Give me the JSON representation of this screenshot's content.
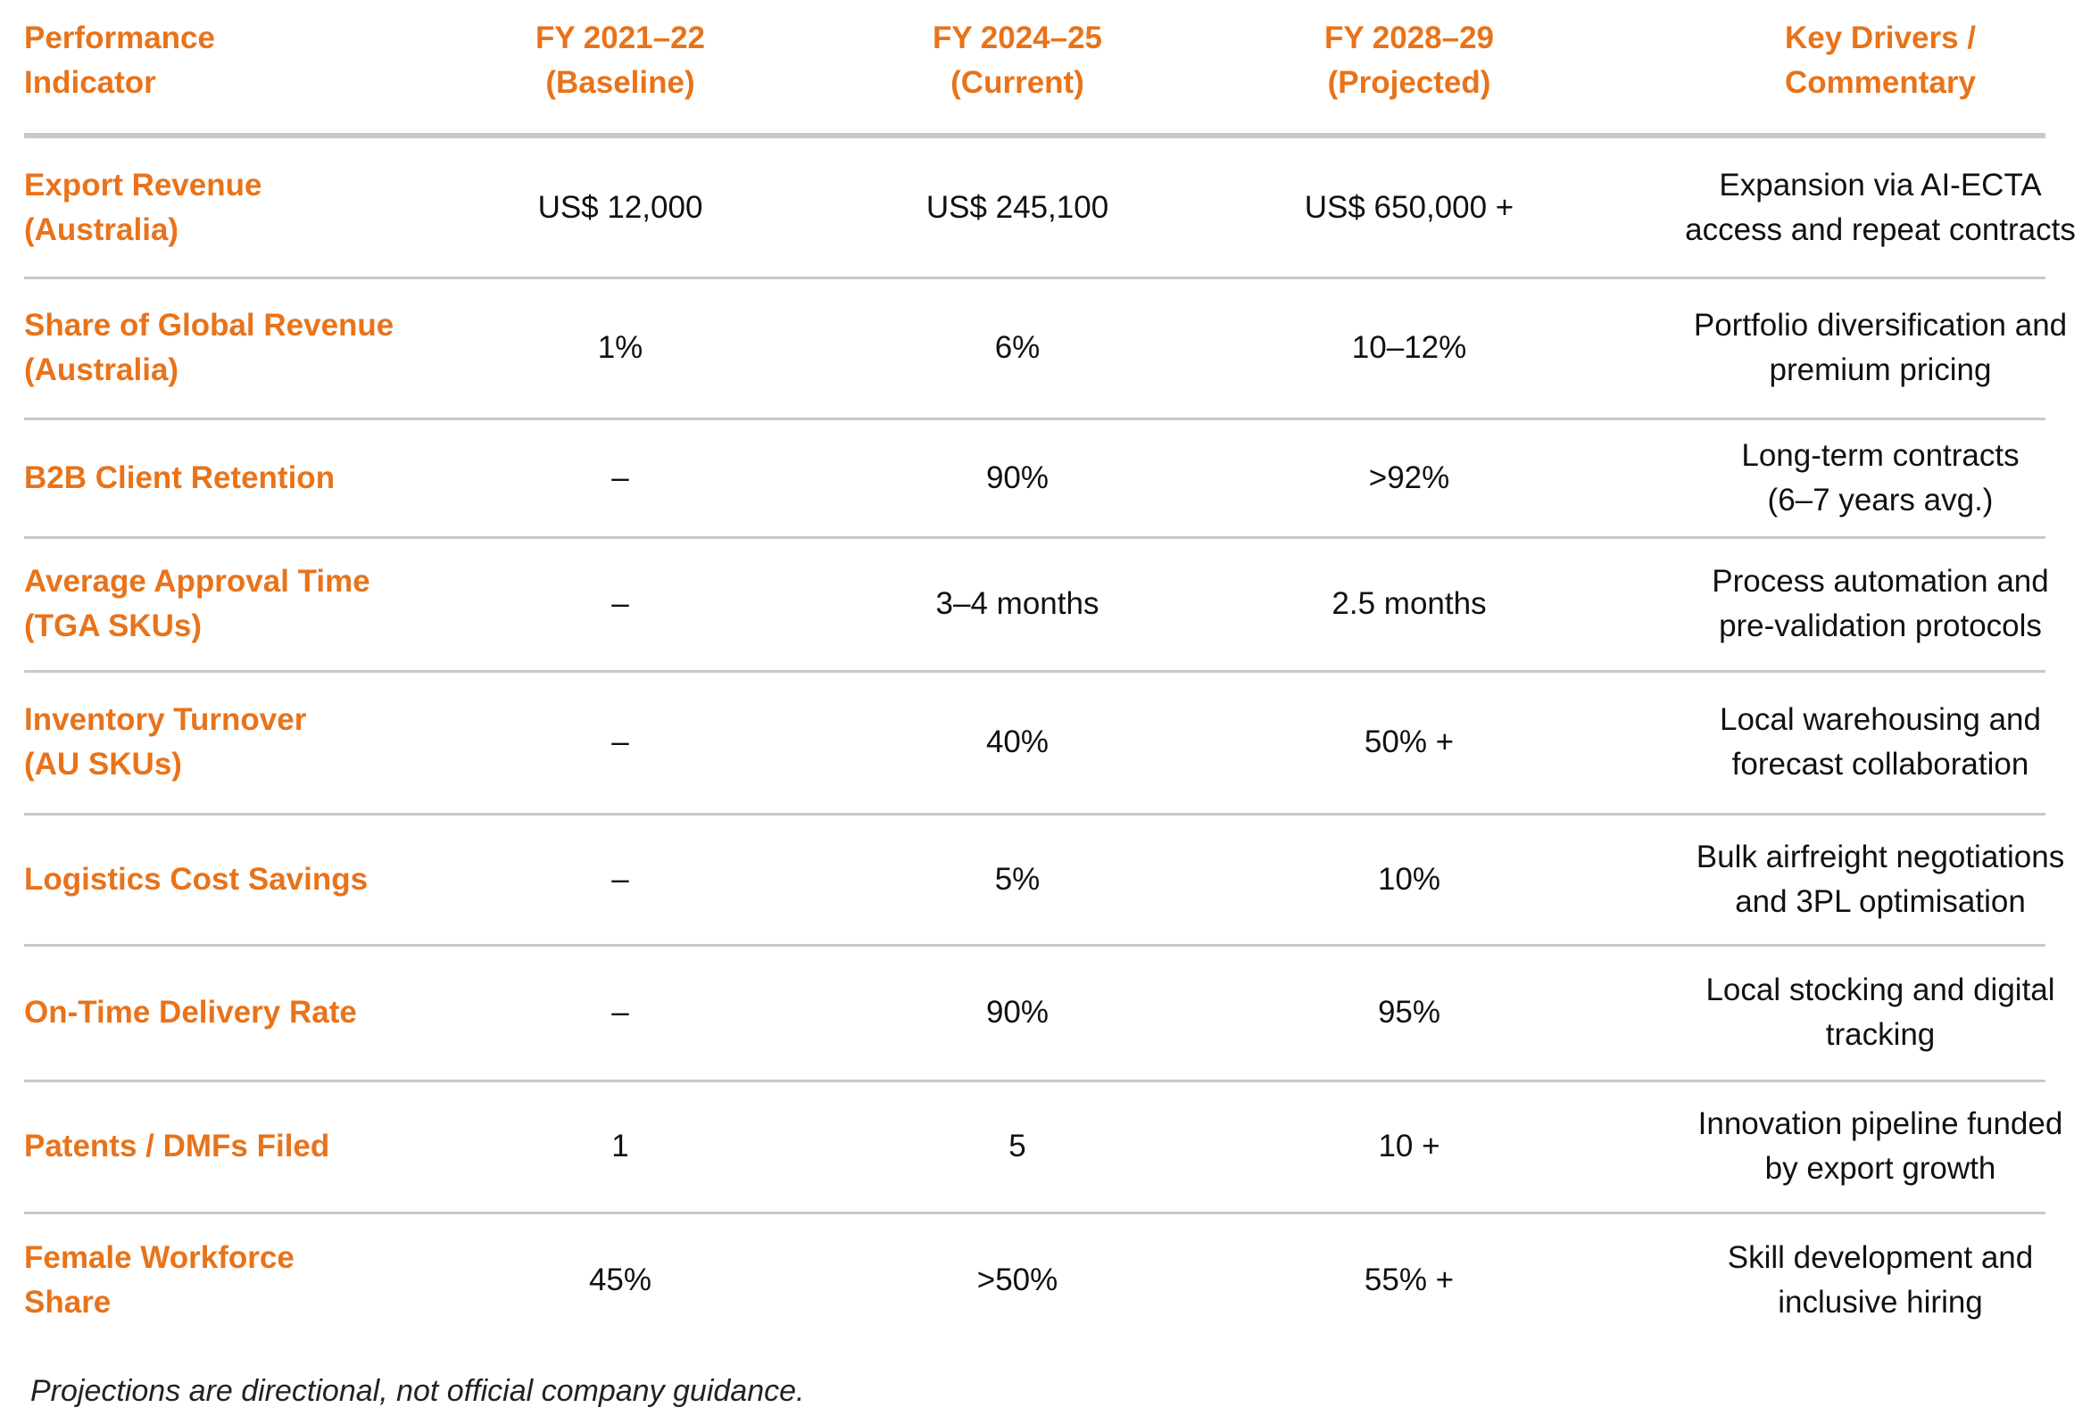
{
  "table": {
    "header": [
      [
        "Performance",
        "Indicator"
      ],
      [
        "FY 2021–22",
        "(Baseline)"
      ],
      [
        "FY 2024–25",
        "(Current)"
      ],
      [
        "FY 2028–29",
        "(Projected)"
      ],
      [
        "Key Drivers /",
        "Commentary"
      ]
    ],
    "rows": [
      [
        [
          "Export Revenue",
          "(Australia)"
        ],
        [
          "US$ 12,000"
        ],
        [
          "US$ 245,100"
        ],
        [
          "US$ 650,000 +"
        ],
        [
          "Expansion via AI-ECTA",
          "access and repeat contracts"
        ]
      ],
      [
        [
          "Share of Global Revenue",
          "(Australia)"
        ],
        [
          "1%"
        ],
        [
          "6%"
        ],
        [
          "10–12%"
        ],
        [
          "Portfolio diversification and",
          "premium pricing"
        ]
      ],
      [
        [
          "B2B Client Retention"
        ],
        [
          "–"
        ],
        [
          "90%"
        ],
        [
          ">92%"
        ],
        [
          "Long-term contracts",
          "(6–7 years avg.)"
        ]
      ],
      [
        [
          "Average Approval Time",
          "(TGA SKUs)"
        ],
        [
          "–"
        ],
        [
          "3–4 months"
        ],
        [
          "2.5 months"
        ],
        [
          "Process automation and",
          "pre-validation protocols"
        ]
      ],
      [
        [
          "Inventory Turnover",
          "(AU SKUs)"
        ],
        [
          "–"
        ],
        [
          "40%"
        ],
        [
          "50% +"
        ],
        [
          "Local warehousing and",
          "forecast collaboration"
        ]
      ],
      [
        [
          "Logistics Cost Savings"
        ],
        [
          "–"
        ],
        [
          "5%"
        ],
        [
          "10%"
        ],
        [
          "Bulk airfreight negotiations",
          "and 3PL optimisation"
        ]
      ],
      [
        [
          "On-Time Delivery Rate"
        ],
        [
          "–"
        ],
        [
          "90%"
        ],
        [
          "95%"
        ],
        [
          "Local stocking and digital",
          "tracking"
        ]
      ],
      [
        [
          "Patents / DMFs Filed"
        ],
        [
          "1"
        ],
        [
          "5"
        ],
        [
          "10 +"
        ],
        [
          "Innovation pipeline funded",
          "by export growth"
        ]
      ],
      [
        [
          "Female Workforce",
          "Share"
        ],
        [
          "45%"
        ],
        [
          ">50%"
        ],
        [
          "55% +"
        ],
        [
          "Skill development and",
          "inclusive hiring"
        ]
      ]
    ]
  },
  "footnote": "Projections are directional, not official company guidance."
}
